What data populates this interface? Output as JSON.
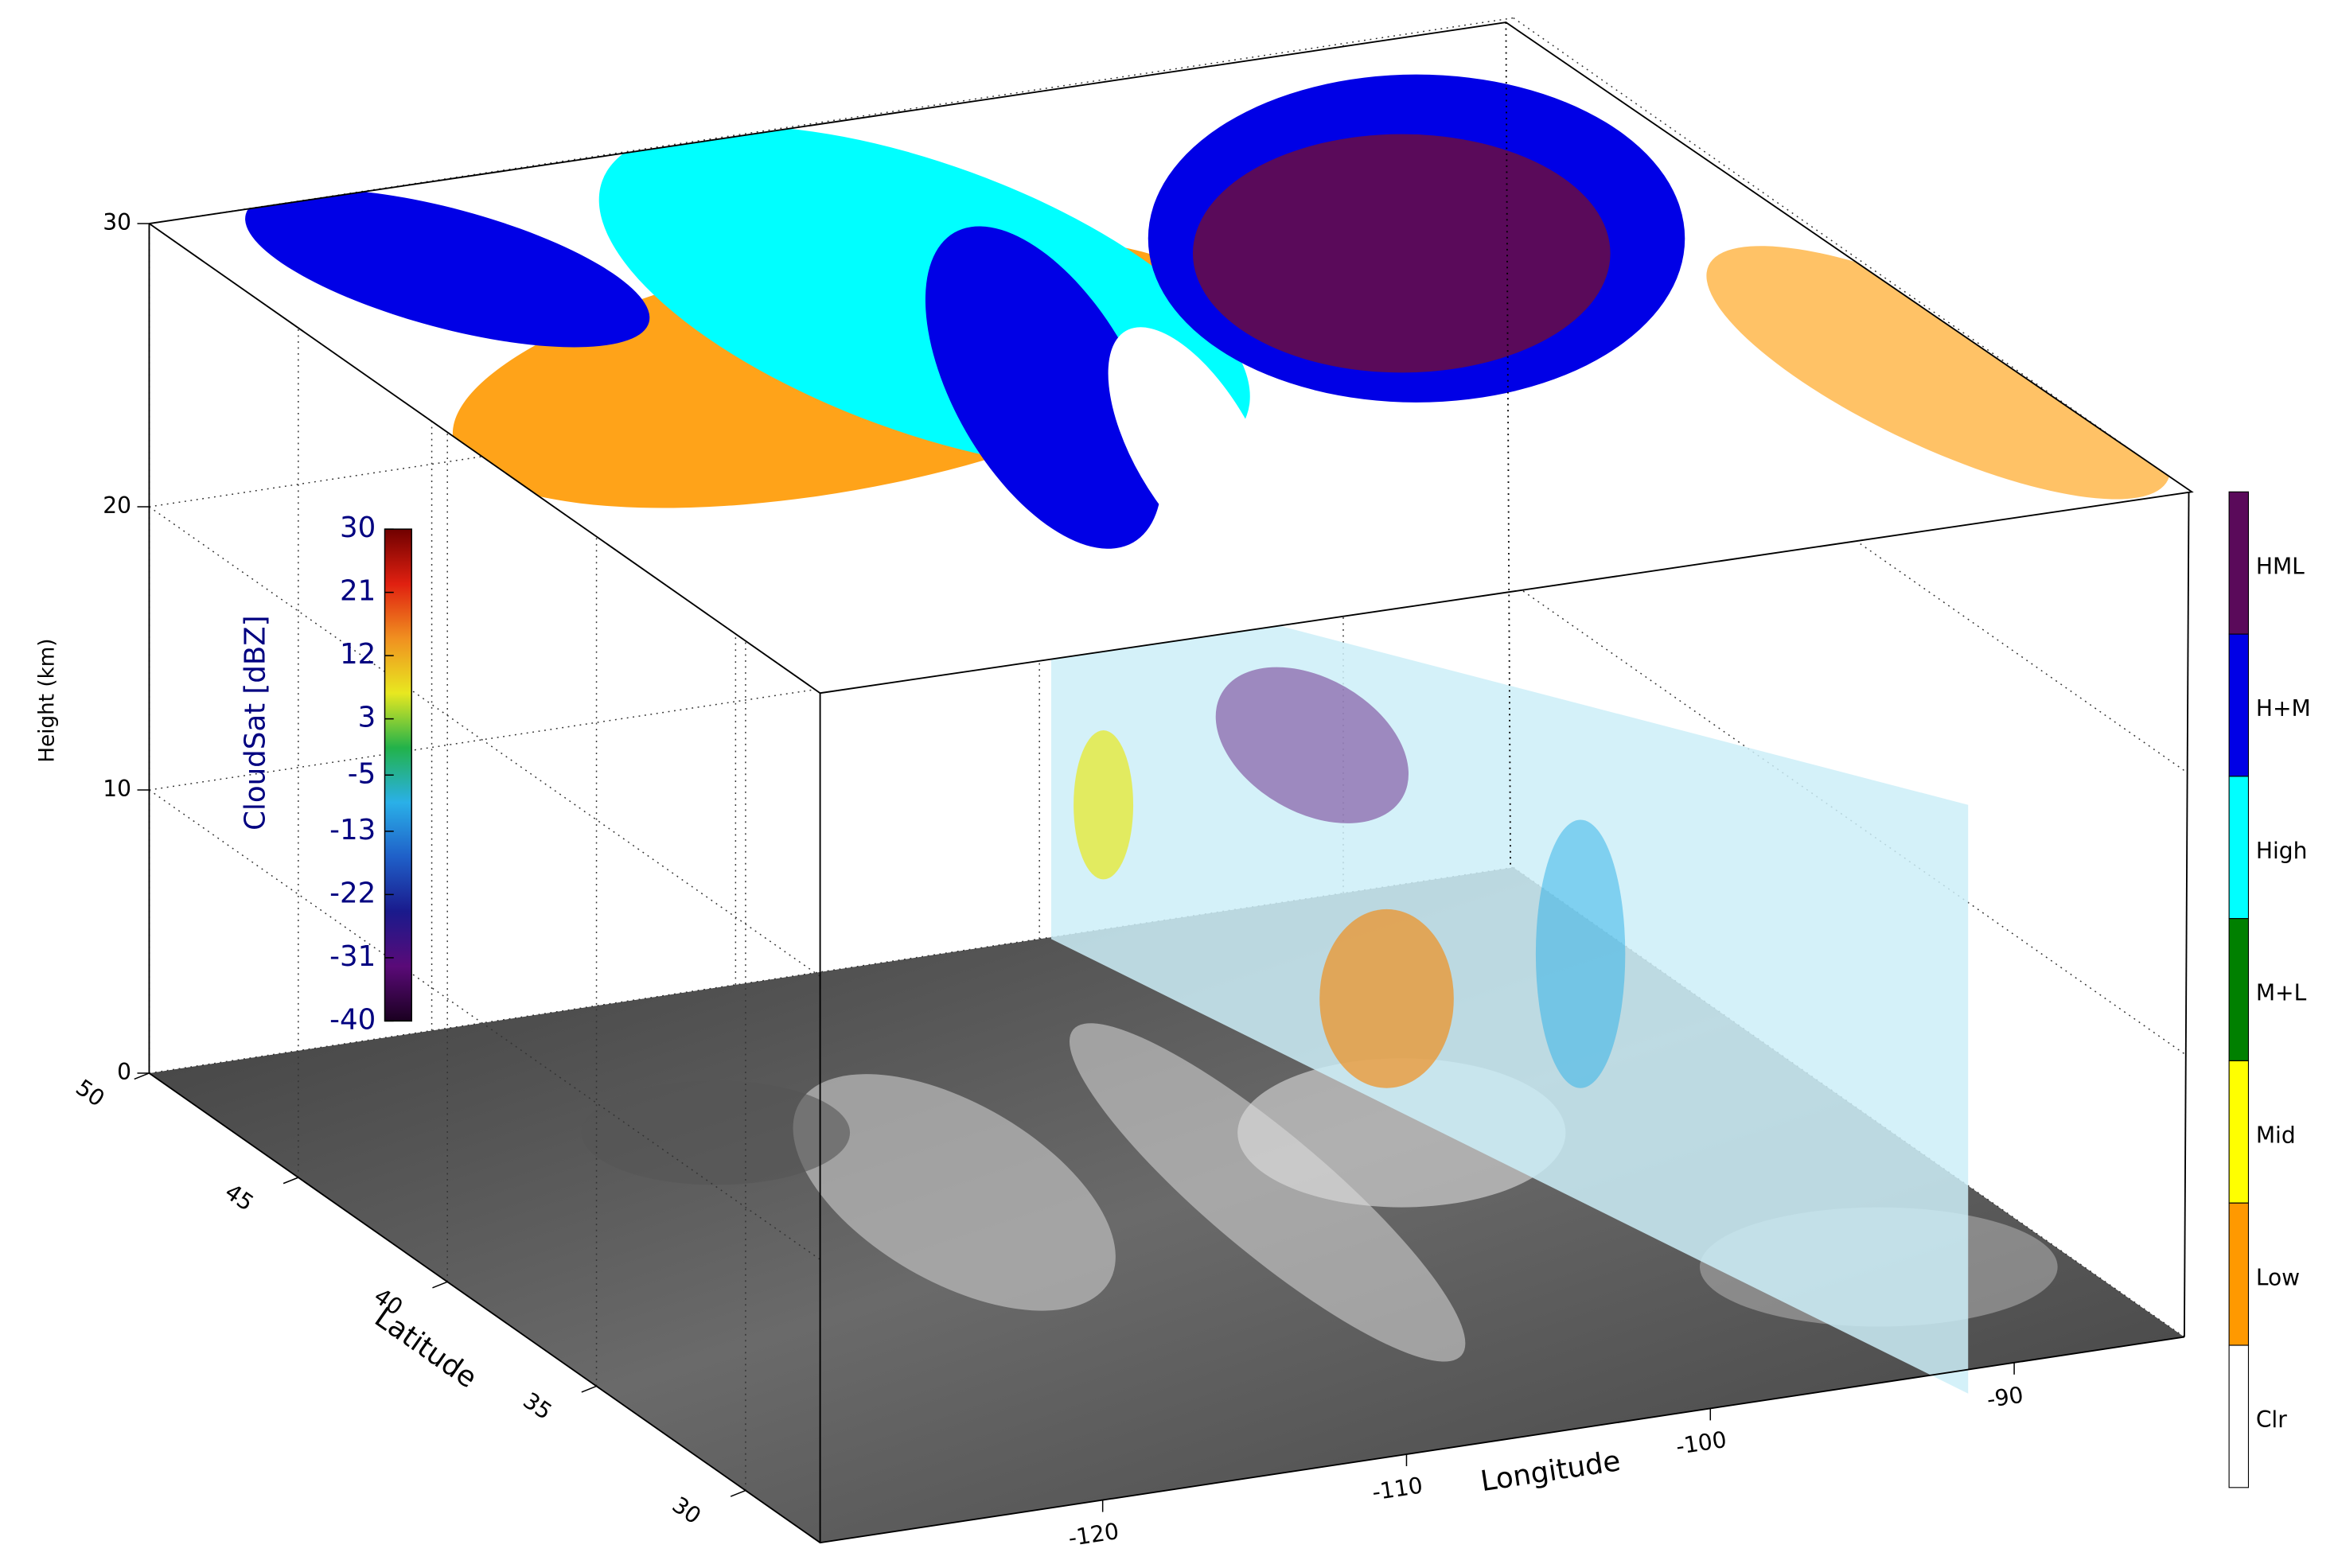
{
  "chart_data": {
    "type": "3d",
    "zlabel": "Height (km)",
    "zlim": [
      0,
      30
    ],
    "zticks": [
      0,
      10,
      20,
      30
    ],
    "xlabel": "Longitude",
    "xlim": [
      -129.3,
      -84.4
    ],
    "xticks": [
      -120,
      -110,
      -100,
      -90
    ],
    "ylabel": "Latitude",
    "ylim": [
      27.5,
      50
    ],
    "yticks": [
      30,
      35,
      40,
      45,
      50
    ],
    "grid": true,
    "colorbar": {
      "label": "CloudSat [dBZ]",
      "clim": [
        -40,
        30
      ],
      "ticks": [
        30,
        21,
        12,
        3,
        -5,
        -13,
        -22,
        -31,
        -40
      ],
      "colors": [
        "#1a0020",
        "#5a0a78",
        "#1a1a8c",
        "#1f5fc8",
        "#2ab0e8",
        "#22b24a",
        "#e8e820",
        "#f09020",
        "#e02010",
        "#700000"
      ]
    },
    "legend": {
      "categories": [
        "HML",
        "H+M",
        "High",
        "M+L",
        "Mid",
        "Low",
        "Clr"
      ],
      "colors": [
        "#5a0a5a",
        "#0000e6",
        "#00ffff",
        "#008000",
        "#ffff00",
        "#ff9900",
        "#ffffff"
      ]
    }
  }
}
